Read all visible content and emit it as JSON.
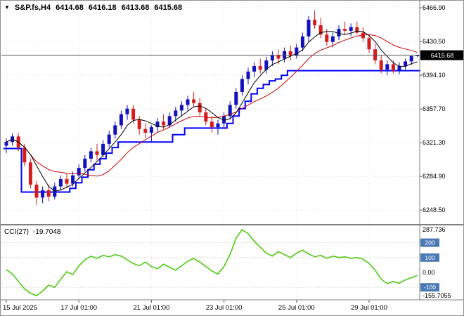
{
  "header": {
    "dropdown_icon": "▼",
    "symbol_period": "S&P.fs,H4",
    "open": "6414.68",
    "high": "6416.18",
    "low": "6413.68",
    "close": "6415.68"
  },
  "indicator": {
    "name": "CCI(27)",
    "value": "-19.7048"
  },
  "colors": {
    "grid": "#d8d8d8",
    "grid_v": "#e4e4e4",
    "candle_up": "#1111bd",
    "candle_down": "#d61c1c",
    "step_line": "#0000ff",
    "ma_fast": "#000000",
    "ma_slow": "#cc0000",
    "cci_line": "#4ecb14",
    "price_tag_bg": "#000000",
    "price_tag_text": "#ffffff",
    "level_badge": "#4a7ab5",
    "frame": "#808080",
    "current_price_line": "#555555"
  },
  "chart_data": [
    {
      "type": "candlestick",
      "title": "S&P.fs,H4",
      "grid": true,
      "ylim": [
        6233.5,
        6474.5
      ],
      "price_ticks": [
        6466.9,
        6430.5,
        6394.1,
        6357.7,
        6321.3,
        6284.9,
        6248.5
      ],
      "current_price": 6415.68,
      "x_tick_labels": [
        "15 Jul 2025",
        "17 Jul 01:00",
        "21 Jul 01:00",
        "23 Jul 01:00",
        "25 Jul 01:00",
        "29 Jul 01:00"
      ],
      "x_tick_bars": [
        0,
        12,
        24,
        36,
        48,
        60
      ],
      "ma_fast_period": 5,
      "ma_slow_period": 13,
      "candles": [
        [
          6318,
          6326,
          6310,
          6322
        ],
        [
          6322,
          6331,
          6318,
          6328
        ],
        [
          6328,
          6332,
          6312,
          6316
        ],
        [
          6316,
          6320,
          6296,
          6300
        ],
        [
          6300,
          6304,
          6272,
          6276
        ],
        [
          6276,
          6280,
          6254,
          6262
        ],
        [
          6262,
          6274,
          6256,
          6270
        ],
        [
          6270,
          6276,
          6258,
          6263
        ],
        [
          6263,
          6278,
          6260,
          6274
        ],
        [
          6274,
          6286,
          6270,
          6282
        ],
        [
          6282,
          6288,
          6272,
          6277
        ],
        [
          6277,
          6290,
          6274,
          6286
        ],
        [
          6286,
          6298,
          6282,
          6294
        ],
        [
          6294,
          6308,
          6290,
          6304
        ],
        [
          6304,
          6316,
          6300,
          6312
        ],
        [
          6312,
          6320,
          6302,
          6308
        ],
        [
          6308,
          6324,
          6306,
          6320
        ],
        [
          6320,
          6334,
          6316,
          6330
        ],
        [
          6330,
          6344,
          6326,
          6340
        ],
        [
          6340,
          6356,
          6336,
          6352
        ],
        [
          6352,
          6362,
          6346,
          6358
        ],
        [
          6358,
          6362,
          6342,
          6346
        ],
        [
          6346,
          6350,
          6330,
          6336
        ],
        [
          6336,
          6342,
          6326,
          6332
        ],
        [
          6332,
          6340,
          6322,
          6338
        ],
        [
          6338,
          6348,
          6332,
          6344
        ],
        [
          6344,
          6352,
          6336,
          6340
        ],
        [
          6340,
          6354,
          6338,
          6350
        ],
        [
          6350,
          6360,
          6344,
          6356
        ],
        [
          6356,
          6366,
          6350,
          6362
        ],
        [
          6362,
          6372,
          6356,
          6368
        ],
        [
          6368,
          6376,
          6360,
          6364
        ],
        [
          6364,
          6370,
          6350,
          6354
        ],
        [
          6354,
          6358,
          6340,
          6344
        ],
        [
          6344,
          6350,
          6332,
          6338
        ],
        [
          6338,
          6346,
          6330,
          6342
        ],
        [
          6342,
          6354,
          6338,
          6350
        ],
        [
          6350,
          6366,
          6346,
          6362
        ],
        [
          6362,
          6380,
          6358,
          6376
        ],
        [
          6376,
          6394,
          6372,
          6390
        ],
        [
          6390,
          6402,
          6384,
          6398
        ],
        [
          6398,
          6408,
          6392,
          6404
        ],
        [
          6404,
          6412,
          6396,
          6400
        ],
        [
          6400,
          6414,
          6396,
          6410
        ],
        [
          6410,
          6420,
          6404,
          6416
        ],
        [
          6416,
          6422,
          6406,
          6412
        ],
        [
          6412,
          6424,
          6408,
          6420
        ],
        [
          6420,
          6426,
          6410,
          6415
        ],
        [
          6415,
          6428,
          6412,
          6424
        ],
        [
          6424,
          6440,
          6420,
          6436
        ],
        [
          6436,
          6458,
          6430,
          6454
        ],
        [
          6454,
          6464,
          6444,
          6448
        ],
        [
          6448,
          6456,
          6434,
          6438
        ],
        [
          6438,
          6444,
          6426,
          6430
        ],
        [
          6430,
          6440,
          6424,
          6436
        ],
        [
          6436,
          6448,
          6432,
          6444
        ],
        [
          6444,
          6452,
          6438,
          6442
        ],
        [
          6442,
          6450,
          6436,
          6446
        ],
        [
          6446,
          6452,
          6438,
          6440
        ],
        [
          6440,
          6446,
          6430,
          6434
        ],
        [
          6434,
          6438,
          6418,
          6422
        ],
        [
          6422,
          6428,
          6406,
          6410
        ],
        [
          6410,
          6416,
          6396,
          6400
        ],
        [
          6400,
          6410,
          6394,
          6406
        ],
        [
          6406,
          6410,
          6396,
          6399
        ],
        [
          6399,
          6408,
          6395,
          6404
        ],
        [
          6404,
          6412,
          6400,
          6409
        ],
        [
          6409,
          6416,
          6405,
          6414.68
        ],
        [
          6414.68,
          6416.18,
          6413.68,
          6415.68
        ]
      ],
      "step_line": [
        6315,
        6315,
        6315,
        6268,
        6268,
        6268,
        6268,
        6268,
        6268,
        6268,
        6268,
        6272,
        6278,
        6284,
        6292,
        6298,
        6304,
        6310,
        6316,
        6322,
        6322,
        6322,
        6322,
        6322,
        6322,
        6322,
        6322,
        6322,
        6330,
        6330,
        6337,
        6337,
        6337,
        6337,
        6337,
        6337,
        6337,
        6342,
        6350,
        6358,
        6366,
        6374,
        6380,
        6384,
        6388,
        6390,
        6394,
        6399,
        6399,
        6399,
        6399,
        6399,
        6399,
        6399,
        6399,
        6399,
        6399,
        6399,
        6399,
        6399,
        6399,
        6399,
        6399,
        6399,
        6399,
        6399,
        6399,
        6399,
        6399
      ]
    },
    {
      "type": "line",
      "title": "CCI(27)",
      "current_value": -19.7048,
      "ylim": [
        -174.6,
        306.6
      ],
      "levels": [
        200,
        100,
        -100
      ],
      "scale_labels": [
        {
          "value": 287.736,
          "label": "287.736"
        },
        {
          "value": 0,
          "label": "0.00"
        },
        {
          "value": -155.7055,
          "label": "-155.7055"
        }
      ],
      "values": [
        20,
        -10,
        -60,
        -110,
        -140,
        -155.7,
        -125,
        -85,
        -100,
        -45,
        5,
        -15,
        45,
        85,
        110,
        95,
        115,
        105,
        120,
        110,
        85,
        60,
        45,
        70,
        40,
        25,
        55,
        35,
        15,
        45,
        75,
        95,
        70,
        40,
        10,
        -10,
        40,
        120,
        230,
        287.7,
        260,
        210,
        170,
        130,
        110,
        140,
        120,
        100,
        130,
        150,
        125,
        105,
        115,
        95,
        110,
        100,
        105,
        95,
        100,
        90,
        60,
        15,
        -45,
        -75,
        -60,
        -72,
        -50,
        -35,
        -19.7048
      ]
    }
  ]
}
